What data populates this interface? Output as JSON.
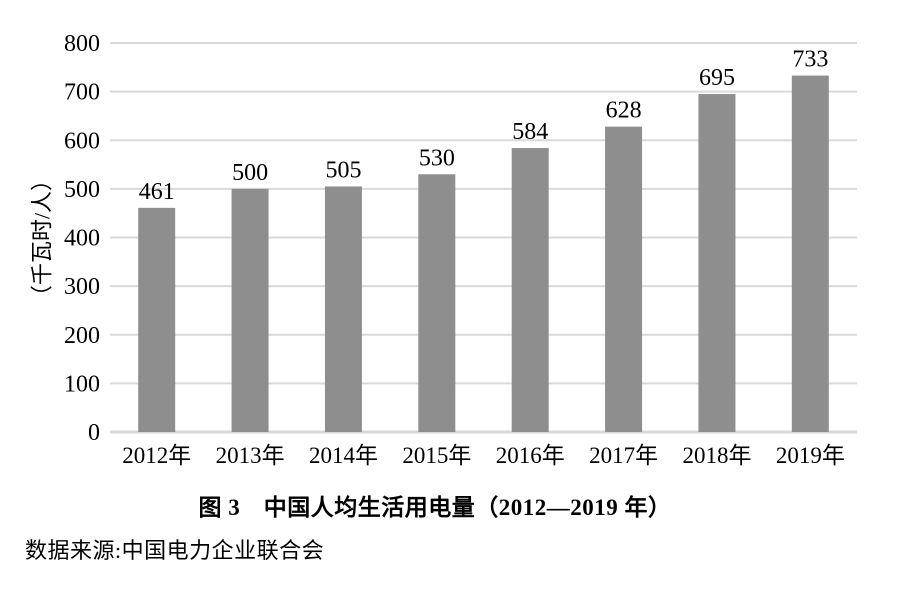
{
  "chart_data": {
    "type": "bar",
    "title": "图 3　中国人均生活用电量（2012—2019 年）",
    "categories": [
      "2012年",
      "2013年",
      "2014年",
      "2015年",
      "2016年",
      "2017年",
      "2018年",
      "2019年"
    ],
    "values": [
      461,
      500,
      505,
      530,
      584,
      628,
      695,
      733
    ],
    "xlabel": "",
    "ylabel": "（千瓦时/人）",
    "ylim": [
      0,
      800
    ],
    "yticks": [
      0,
      100,
      200,
      300,
      400,
      500,
      600,
      700,
      800
    ],
    "grid": true,
    "legend_position": "none",
    "bar_color": "#8e8e8e",
    "gridline_color": "#d9d9d9",
    "text_color": "#000000",
    "background_color": "#ffffff"
  },
  "source_note": "数据来源:中国电力企业联合会"
}
